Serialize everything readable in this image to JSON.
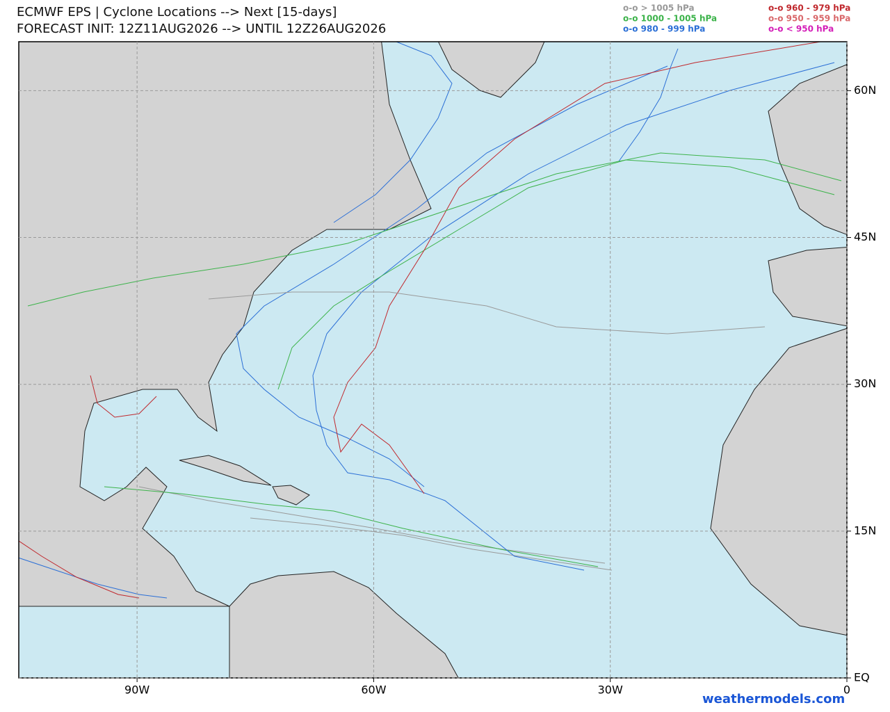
{
  "header": {
    "title": "ECMWF EPS | Cyclone Locations --> Next [15-days]",
    "subtitle": "FORECAST INIT: 12Z11AUG2026 --> UNTIL 12Z26AUG2026"
  },
  "legend": [
    {
      "label": "o-o > 1005 hPa",
      "color": "#999999"
    },
    {
      "label": "o-o 1000 - 1005 hPa",
      "color": "#3cb34a"
    },
    {
      "label": "o-o 980 - 999 hPa",
      "color": "#2b6fd6"
    },
    {
      "label": "o-o 960 - 979 hPa",
      "color": "#c0282d"
    },
    {
      "label": "o-o 950 - 959 hPa",
      "color": "#d9686b"
    },
    {
      "label": "o-o < 950 hPa",
      "color": "#d41fb8"
    }
  ],
  "map": {
    "xlim": [
      -105,
      0
    ],
    "ylim": [
      0,
      65
    ],
    "xticks": [
      {
        "value": -90,
        "label": "90W"
      },
      {
        "value": -60,
        "label": "60W"
      },
      {
        "value": -30,
        "label": "30W"
      },
      {
        "value": 0,
        "label": "0"
      }
    ],
    "yticks": [
      {
        "value": 0,
        "label": "EQ"
      },
      {
        "value": 15,
        "label": "15N"
      },
      {
        "value": 30,
        "label": "30N"
      },
      {
        "value": 45,
        "label": "45N"
      },
      {
        "value": 60,
        "label": "60N"
      }
    ]
  },
  "footer": {
    "credit": "weathermodels.com"
  }
}
